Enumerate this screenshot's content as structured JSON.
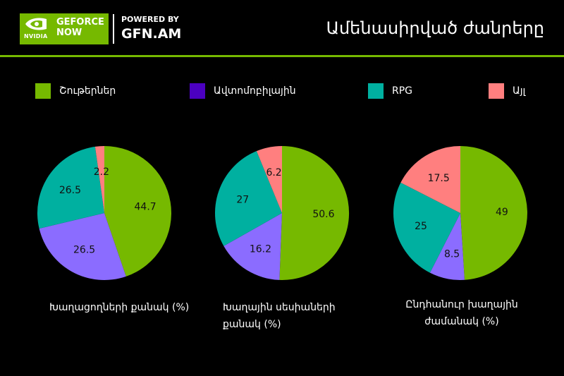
{
  "header": {
    "brand_small": "NVIDIA",
    "geforce_line1": "GEFORCE",
    "geforce_line2": "NOW",
    "powered_by": "POWERED BY",
    "gfn": "GFN.AM",
    "title": "Ամենասիրված ժանրերը"
  },
  "colors": {
    "accent": "#76b900",
    "shooters": "#76b900",
    "racing": "#4b00c0",
    "rpg": "#00b0a0",
    "other": "#ff7f7f"
  },
  "legend": [
    {
      "label": "Շութերներ",
      "color": "#76b900"
    },
    {
      "label": "Ավտոմոբիլային",
      "color": "#4b00c0"
    },
    {
      "label": "RPG",
      "color": "#00b0a0"
    },
    {
      "label": "Այլ",
      "color": "#ff7f7f"
    }
  ],
  "chart_data": [
    {
      "type": "pie",
      "title": "Խաղացողների քանակ (%)",
      "categories": [
        "Շութերներ",
        "Ավտոմոբիլային",
        "RPG",
        "Այլ"
      ],
      "values": [
        44.7,
        26.5,
        26.5,
        2.2
      ],
      "colors": [
        "#76b900",
        "#8b6cff",
        "#00b0a0",
        "#ff7f7f"
      ]
    },
    {
      "type": "pie",
      "title": "Խաղային սեսիաների քանակ (%)",
      "categories": [
        "Շութերներ",
        "Ավտոմոբիլային",
        "RPG",
        "Այլ"
      ],
      "values": [
        50.6,
        16.2,
        27,
        6.2
      ],
      "colors": [
        "#76b900",
        "#8b6cff",
        "#00b0a0",
        "#ff7f7f"
      ]
    },
    {
      "type": "pie",
      "title": "Ընդհանուր խաղային ժամանակ (%)",
      "categories": [
        "Շութերներ",
        "Ավտոմոբիլային",
        "RPG",
        "Այլ"
      ],
      "values": [
        49,
        8.5,
        25,
        17.5
      ],
      "colors": [
        "#76b900",
        "#8b6cff",
        "#00b0a0",
        "#ff7f7f"
      ]
    }
  ]
}
